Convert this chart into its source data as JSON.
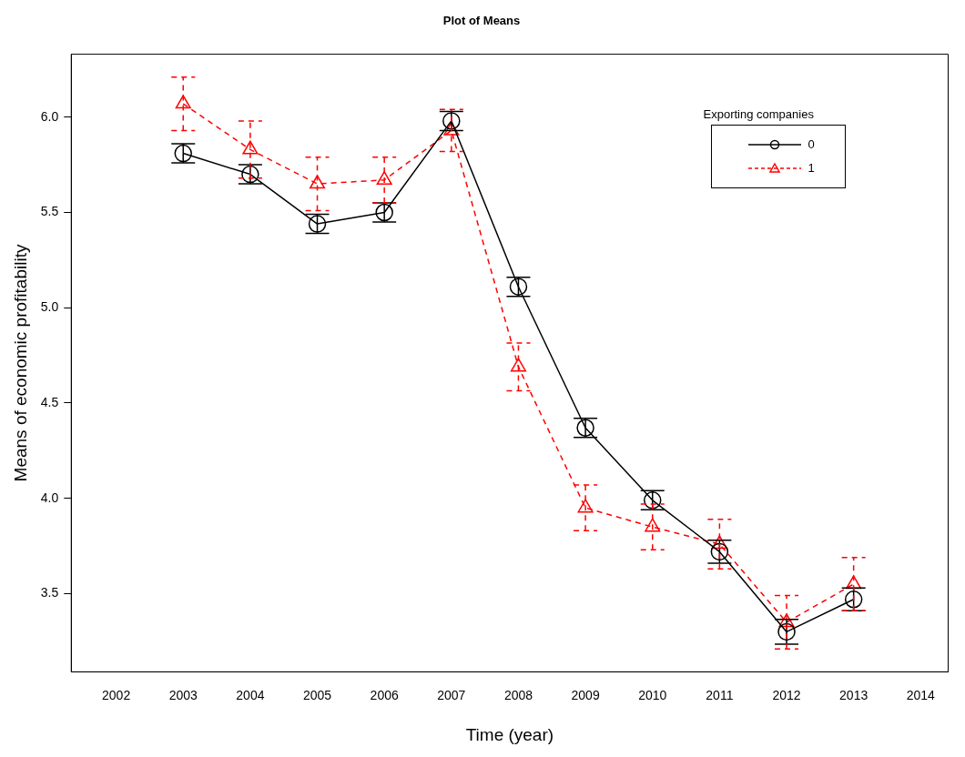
{
  "chart_data": {
    "type": "line",
    "title": "Plot of Means",
    "xlabel": "Time (year)",
    "ylabel": "Means of economic profitability",
    "legend_title": "Exporting companies",
    "legend": "top right",
    "x": [
      2003,
      2004,
      2005,
      2006,
      2007,
      2008,
      2009,
      2010,
      2011,
      2012,
      2013
    ],
    "xlim": [
      2001.33,
      2014.41
    ],
    "xticks": [
      2002,
      2003,
      2004,
      2005,
      2006,
      2007,
      2008,
      2009,
      2010,
      2011,
      2012,
      2013,
      2014
    ],
    "ylim": [
      3.09,
      6.33
    ],
    "yticks": [
      {
        "value": 3.5,
        "label": "3.5"
      },
      {
        "value": 4,
        "label": "4.0"
      },
      {
        "value": 4.5,
        "label": "4.5"
      },
      {
        "value": 5,
        "label": "5.0"
      },
      {
        "value": 5.5,
        "label": "5.5"
      },
      {
        "value": 6,
        "label": "6.0"
      }
    ],
    "grid": false,
    "series": [
      {
        "name": "0",
        "color": "#000000",
        "marker": "circle",
        "line_style": "solid",
        "values": [
          5.81,
          5.7,
          5.44,
          5.5,
          5.98,
          5.11,
          4.37,
          3.99,
          3.72,
          3.3,
          3.47
        ],
        "errors": [
          0.05,
          0.05,
          0.05,
          0.05,
          0.05,
          0.05,
          0.05,
          0.05,
          0.06,
          0.065,
          0.06
        ]
      },
      {
        "name": "1",
        "color": "#ff0000",
        "marker": "triangle",
        "line_style": "dashed",
        "values": [
          6.07,
          5.83,
          5.65,
          5.67,
          5.93,
          4.69,
          3.95,
          3.85,
          3.76,
          3.35,
          3.55
        ],
        "errors": [
          0.14,
          0.15,
          0.14,
          0.12,
          0.11,
          0.125,
          0.12,
          0.12,
          0.13,
          0.14,
          0.14
        ]
      }
    ]
  }
}
